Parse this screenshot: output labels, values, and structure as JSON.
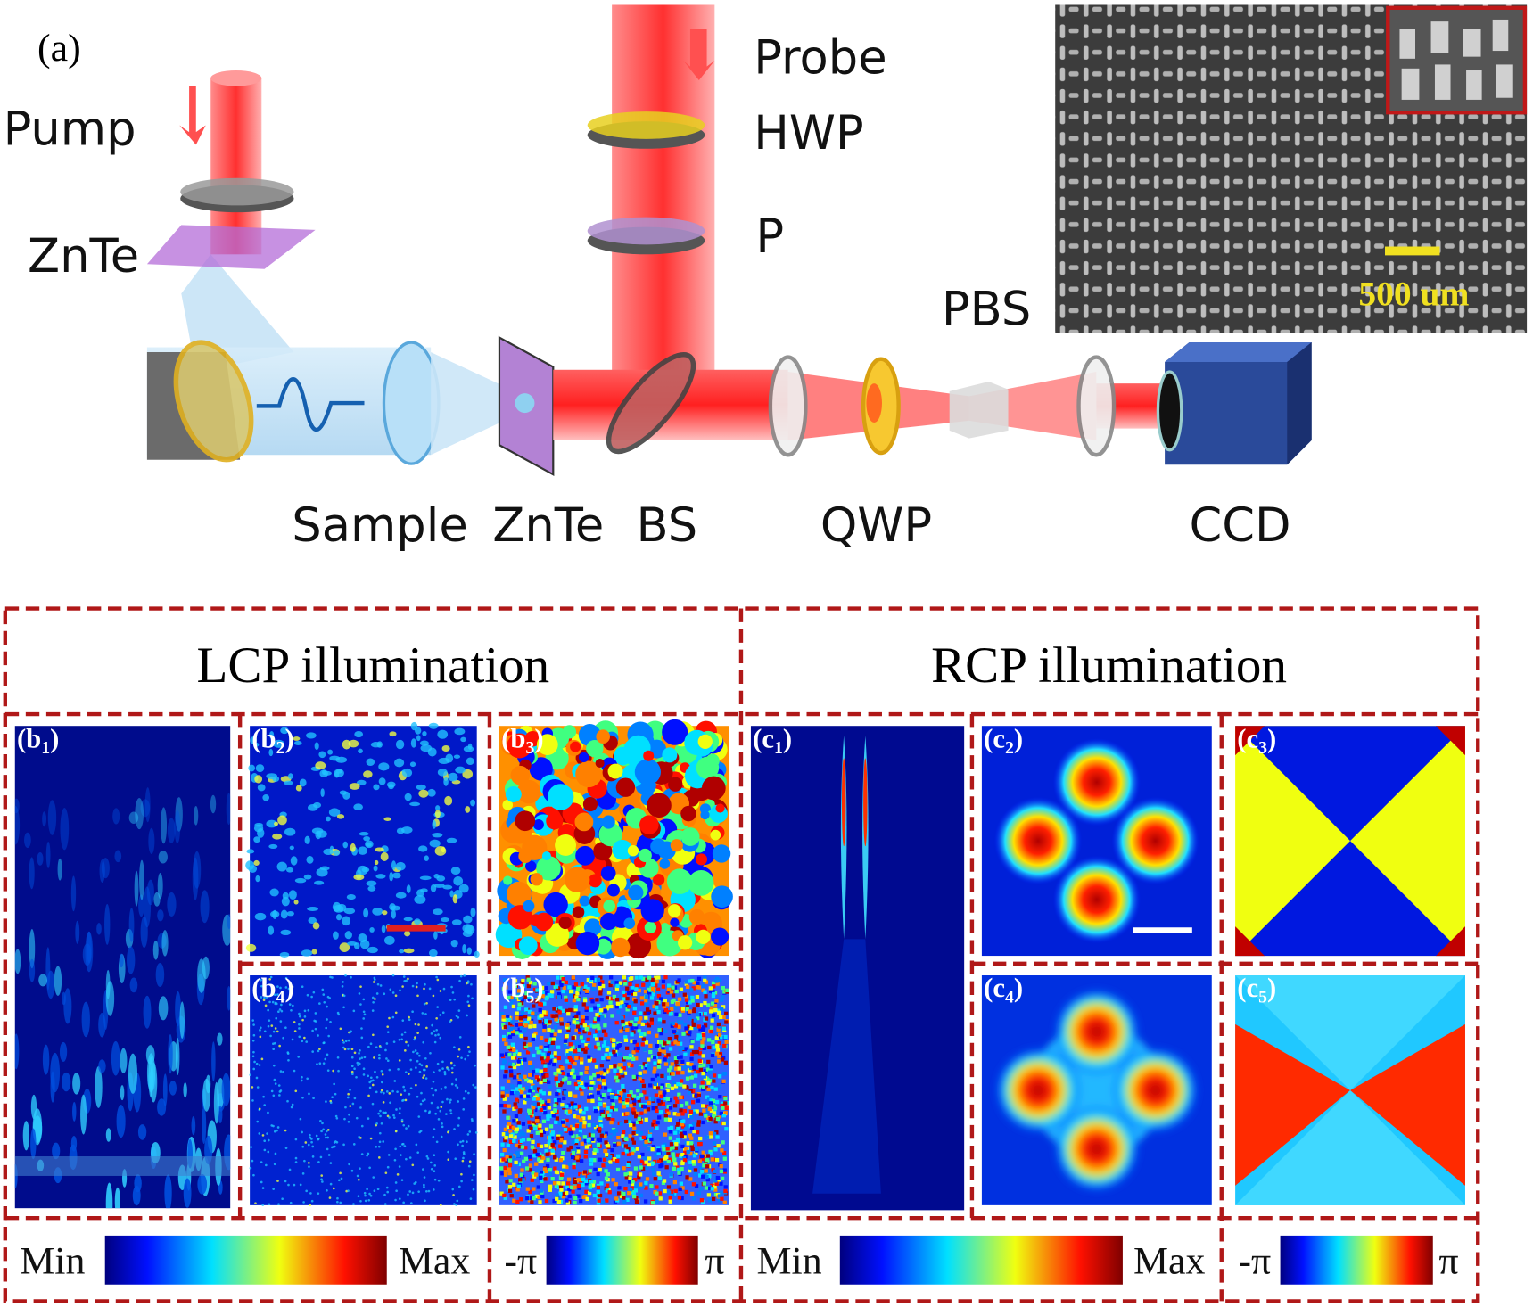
{
  "setup": {
    "panel_label": "(a)",
    "pump": "Pump",
    "znte_top": "ZnTe",
    "probe": "Probe",
    "hwp": "HWP",
    "polarizer": "P",
    "pbs": "PBS",
    "sample": "Sample",
    "znte": "ZnTe",
    "bs": "BS",
    "qwp": "QWP",
    "ccd": "CCD",
    "scale_bar": "500 um"
  },
  "groups": [
    {
      "title": "LCP illumination",
      "panels": [
        [
          "(b",
          "1",
          ")"
        ],
        [
          "(b",
          "2",
          ")"
        ],
        [
          "(b",
          "3",
          ")"
        ],
        [
          "(b",
          "4",
          ")"
        ],
        [
          "(b",
          "5",
          ")"
        ]
      ],
      "colorbars": [
        {
          "min": "Min",
          "max": "Max"
        },
        {
          "min": "-π",
          "max": "π"
        }
      ]
    },
    {
      "title": "RCP illumination",
      "panels": [
        [
          "(c",
          "1",
          ")"
        ],
        [
          "(c",
          "2",
          ")"
        ],
        [
          "(c",
          "3",
          ")"
        ],
        [
          "(c",
          "4",
          ")"
        ],
        [
          "(c",
          "5",
          ")"
        ]
      ],
      "colorbars": [
        {
          "min": "Min",
          "max": "Max"
        },
        {
          "min": "-π",
          "max": "π"
        }
      ]
    }
  ]
}
